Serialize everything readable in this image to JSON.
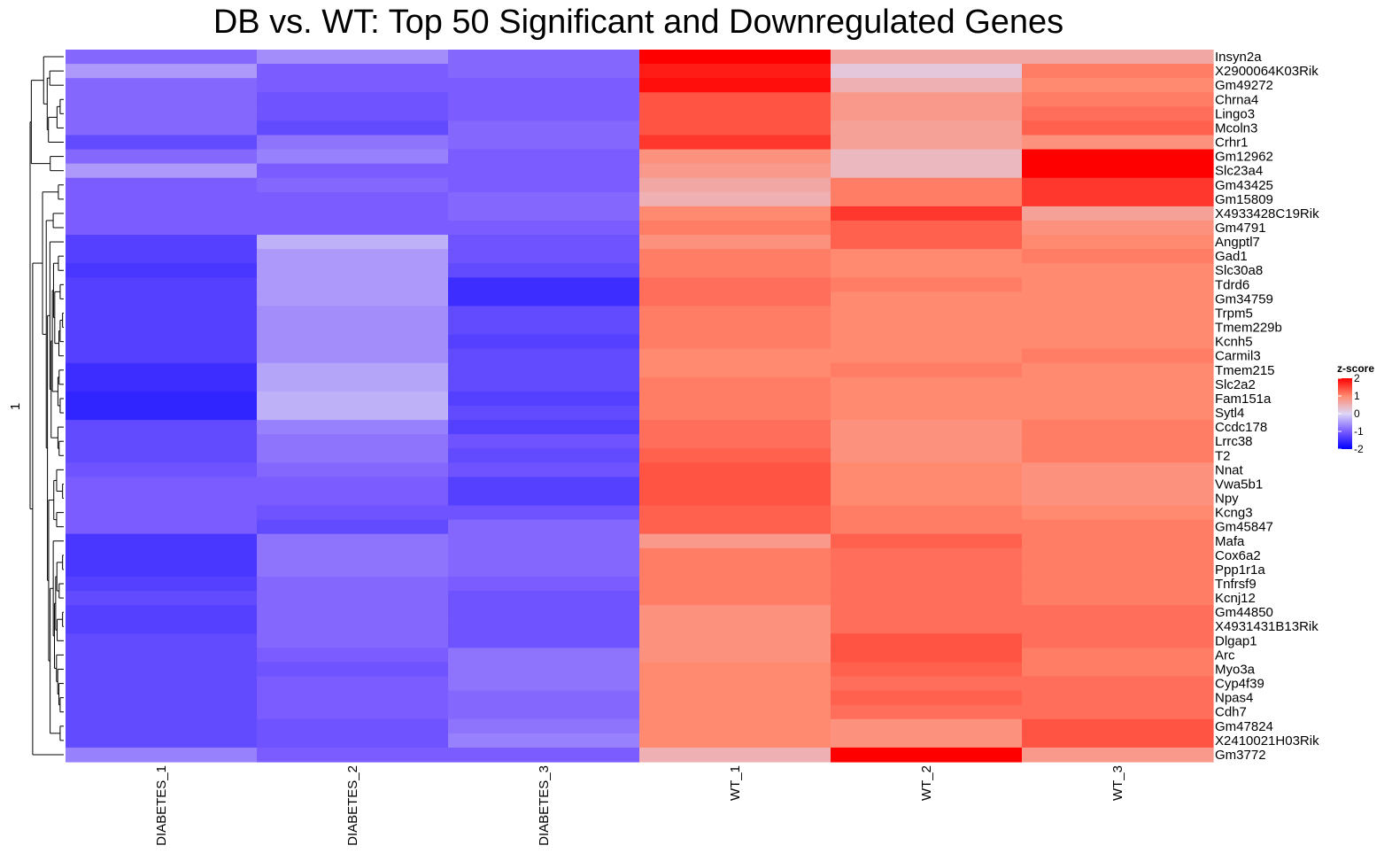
{
  "chart_data": {
    "type": "heatmap",
    "title": "DB vs. WT: Top 50 Significant and Downregulated Genes",
    "columns": [
      "DIABETES_1",
      "DIABETES_2",
      "DIABETES_3",
      "WT_1",
      "WT_2",
      "WT_3"
    ],
    "rows": [
      {
        "gene": "Insyn2a",
        "values": [
          -0.9,
          -0.6,
          -0.9,
          2.0,
          0.6,
          0.6
        ]
      },
      {
        "gene": "X2900064K03Rik",
        "values": [
          -0.5,
          -1.0,
          -0.9,
          1.8,
          0.2,
          1.1
        ]
      },
      {
        "gene": "Gm49272",
        "values": [
          -0.9,
          -1.0,
          -1.0,
          1.9,
          0.5,
          1.0
        ]
      },
      {
        "gene": "Chrna4",
        "values": [
          -0.9,
          -1.1,
          -1.0,
          1.4,
          0.8,
          1.1
        ]
      },
      {
        "gene": "Lingo3",
        "values": [
          -0.9,
          -1.1,
          -1.0,
          1.4,
          0.8,
          1.2
        ]
      },
      {
        "gene": "Mcoln3",
        "values": [
          -0.9,
          -1.2,
          -0.9,
          1.4,
          0.7,
          1.3
        ]
      },
      {
        "gene": "Crhr1",
        "values": [
          -1.2,
          -0.8,
          -0.9,
          1.6,
          0.7,
          0.9
        ]
      },
      {
        "gene": "Gm12962",
        "values": [
          -0.9,
          -0.7,
          -1.0,
          0.9,
          0.4,
          2.0
        ]
      },
      {
        "gene": "Slc23a4",
        "values": [
          -0.5,
          -1.0,
          -1.0,
          0.8,
          0.4,
          2.0
        ]
      },
      {
        "gene": "Gm43425",
        "values": [
          -1.0,
          -0.9,
          -1.0,
          0.6,
          1.1,
          1.6
        ]
      },
      {
        "gene": "Gm15809",
        "values": [
          -1.0,
          -1.0,
          -0.9,
          0.5,
          1.1,
          1.6
        ]
      },
      {
        "gene": "X4933428C19Rik",
        "values": [
          -1.0,
          -1.0,
          -0.9,
          1.0,
          1.6,
          0.7
        ]
      },
      {
        "gene": "Gm4791",
        "values": [
          -1.0,
          -1.0,
          -1.0,
          1.1,
          1.3,
          0.9
        ]
      },
      {
        "gene": "Angptl7",
        "values": [
          -1.3,
          -0.3,
          -1.1,
          0.9,
          1.3,
          1.0
        ]
      },
      {
        "gene": "Gad1",
        "values": [
          -1.3,
          -0.5,
          -1.1,
          1.1,
          1.0,
          1.1
        ]
      },
      {
        "gene": "Slc30a8",
        "values": [
          -1.4,
          -0.5,
          -1.2,
          1.1,
          1.0,
          1.0
        ]
      },
      {
        "gene": "Tdrd6",
        "values": [
          -1.3,
          -0.5,
          -1.5,
          1.2,
          1.1,
          1.0
        ]
      },
      {
        "gene": "Gm34759",
        "values": [
          -1.3,
          -0.5,
          -1.5,
          1.2,
          1.0,
          1.0
        ]
      },
      {
        "gene": "Trpm5",
        "values": [
          -1.3,
          -0.6,
          -1.2,
          1.1,
          1.0,
          1.0
        ]
      },
      {
        "gene": "Tmem229b",
        "values": [
          -1.3,
          -0.6,
          -1.2,
          1.1,
          1.0,
          1.0
        ]
      },
      {
        "gene": "Kcnh5",
        "values": [
          -1.3,
          -0.6,
          -1.3,
          1.1,
          1.0,
          1.0
        ]
      },
      {
        "gene": "Carmil3",
        "values": [
          -1.3,
          -0.6,
          -1.2,
          1.0,
          1.0,
          1.1
        ]
      },
      {
        "gene": "Tmem215",
        "values": [
          -1.5,
          -0.4,
          -1.2,
          1.0,
          1.1,
          1.0
        ]
      },
      {
        "gene": "Slc2a2",
        "values": [
          -1.5,
          -0.4,
          -1.2,
          1.1,
          1.0,
          1.0
        ]
      },
      {
        "gene": "Fam151a",
        "values": [
          -1.6,
          -0.3,
          -1.3,
          1.1,
          1.0,
          1.0
        ]
      },
      {
        "gene": "Sytl4",
        "values": [
          -1.6,
          -0.3,
          -1.2,
          1.1,
          1.0,
          1.0
        ]
      },
      {
        "gene": "Ccdc178",
        "values": [
          -1.2,
          -0.7,
          -1.3,
          1.2,
          0.9,
          1.1
        ]
      },
      {
        "gene": "Lrrc38",
        "values": [
          -1.2,
          -0.8,
          -1.1,
          1.2,
          0.9,
          1.1
        ]
      },
      {
        "gene": "T2",
        "values": [
          -1.2,
          -0.8,
          -1.2,
          1.3,
          0.9,
          1.1
        ]
      },
      {
        "gene": "Nnat",
        "values": [
          -1.1,
          -0.9,
          -1.1,
          1.4,
          1.0,
          0.9
        ]
      },
      {
        "gene": "Vwa5b1",
        "values": [
          -1.0,
          -1.0,
          -1.3,
          1.4,
          1.0,
          0.9
        ]
      },
      {
        "gene": "Npy",
        "values": [
          -1.0,
          -1.0,
          -1.3,
          1.4,
          1.0,
          0.9
        ]
      },
      {
        "gene": "Kcng3",
        "values": [
          -1.0,
          -1.1,
          -1.1,
          1.3,
          1.1,
          1.0
        ]
      },
      {
        "gene": "Gm45847",
        "values": [
          -1.0,
          -1.2,
          -0.9,
          1.3,
          1.1,
          1.1
        ]
      },
      {
        "gene": "Mafa",
        "values": [
          -1.4,
          -0.8,
          -0.9,
          0.8,
          1.3,
          1.1
        ]
      },
      {
        "gene": "Cox6a2",
        "values": [
          -1.4,
          -0.8,
          -0.9,
          1.1,
          1.2,
          1.1
        ]
      },
      {
        "gene": "Ppp1r1a",
        "values": [
          -1.4,
          -0.8,
          -0.9,
          1.1,
          1.2,
          1.1
        ]
      },
      {
        "gene": "Tnfrsf9",
        "values": [
          -1.3,
          -0.9,
          -1.0,
          1.1,
          1.2,
          1.1
        ]
      },
      {
        "gene": "Kcnj12",
        "values": [
          -1.2,
          -0.9,
          -1.1,
          1.1,
          1.2,
          1.1
        ]
      },
      {
        "gene": "Gm44850",
        "values": [
          -1.3,
          -0.9,
          -1.1,
          0.9,
          1.2,
          1.2
        ]
      },
      {
        "gene": "X4931431B13Rik",
        "values": [
          -1.3,
          -0.9,
          -1.1,
          0.9,
          1.2,
          1.2
        ]
      },
      {
        "gene": "Dlgap1",
        "values": [
          -1.2,
          -0.9,
          -1.1,
          0.9,
          1.4,
          1.2
        ]
      },
      {
        "gene": "Arc",
        "values": [
          -1.2,
          -1.0,
          -0.8,
          0.9,
          1.4,
          1.1
        ]
      },
      {
        "gene": "Myo3a",
        "values": [
          -1.2,
          -1.1,
          -0.8,
          1.0,
          1.3,
          1.1
        ]
      },
      {
        "gene": "Cyp4f39",
        "values": [
          -1.2,
          -1.0,
          -0.8,
          1.0,
          1.2,
          1.2
        ]
      },
      {
        "gene": "Npas4",
        "values": [
          -1.2,
          -1.0,
          -0.9,
          1.0,
          1.3,
          1.2
        ]
      },
      {
        "gene": "Cdh7",
        "values": [
          -1.2,
          -1.0,
          -0.9,
          1.0,
          1.2,
          1.2
        ]
      },
      {
        "gene": "Gm47824",
        "values": [
          -1.2,
          -1.1,
          -0.8,
          1.0,
          0.9,
          1.4
        ]
      },
      {
        "gene": "X2410021H03Rik",
        "values": [
          -1.2,
          -1.1,
          -0.7,
          1.0,
          0.9,
          1.4
        ]
      },
      {
        "gene": "Gm3772",
        "values": [
          -0.7,
          -1.0,
          -1.0,
          0.5,
          2.0,
          0.8
        ]
      }
    ],
    "zlim": [
      -2,
      2
    ],
    "legend": {
      "title": "z-score",
      "ticks": [
        2,
        1,
        0,
        -1,
        -2
      ],
      "position": "right"
    },
    "row_cluster_label": "1",
    "row_dendrogram": true
  }
}
